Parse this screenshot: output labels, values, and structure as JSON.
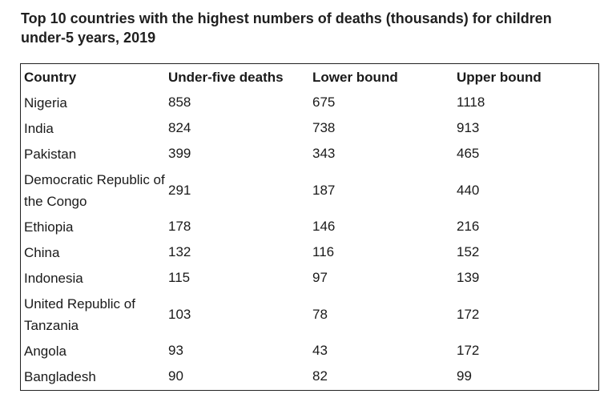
{
  "title": "Top 10 countries with the highest numbers of deaths (thousands) for children under-5 years, 2019",
  "table": {
    "headers": [
      "Country",
      "Under-five deaths",
      "Lower bound",
      "Upper bound"
    ],
    "rows": [
      {
        "country": "Nigeria",
        "deaths": "858",
        "lower": "675",
        "upper": "1118"
      },
      {
        "country": "India",
        "deaths": "824",
        "lower": "738",
        "upper": "913"
      },
      {
        "country": "Pakistan",
        "deaths": "399",
        "lower": "343",
        "upper": "465"
      },
      {
        "country": "Democratic Republic of the Congo",
        "deaths": "291",
        "lower": "187",
        "upper": "440"
      },
      {
        "country": "Ethiopia",
        "deaths": "178",
        "lower": "146",
        "upper": "216"
      },
      {
        "country": "China",
        "deaths": "132",
        "lower": "116",
        "upper": "152"
      },
      {
        "country": "Indonesia",
        "deaths": "115",
        "lower": "97",
        "upper": "139"
      },
      {
        "country": "United Republic of Tanzania",
        "deaths": "103",
        "lower": "78",
        "upper": "172"
      },
      {
        "country": "Angola",
        "deaths": "93",
        "lower": "43",
        "upper": "172"
      },
      {
        "country": "Bangladesh",
        "deaths": "90",
        "lower": "82",
        "upper": "99"
      }
    ]
  }
}
